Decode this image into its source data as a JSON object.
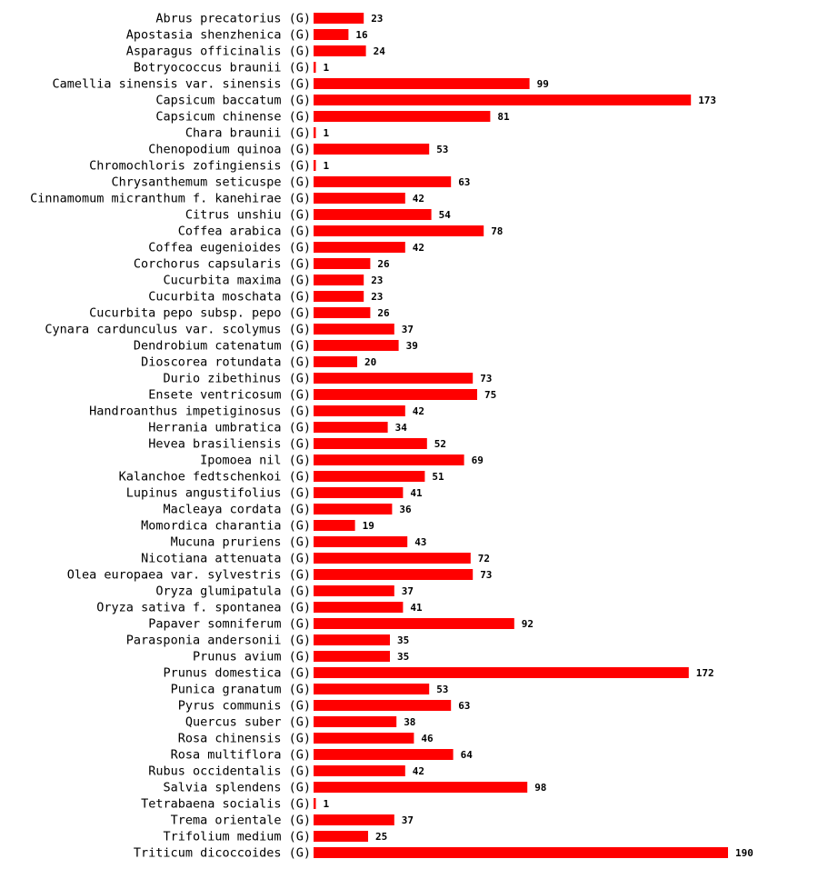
{
  "chart_data": {
    "type": "bar",
    "orientation": "horizontal",
    "title": "",
    "xlabel": "",
    "ylabel": "",
    "xlim": [
      0,
      190
    ],
    "grid": false,
    "bar_color": "#ff0000",
    "categories": [
      "Abrus precatorius (G)",
      "Apostasia shenzhenica (G)",
      "Asparagus officinalis (G)",
      "Botryococcus braunii (G)",
      "Camellia sinensis var. sinensis (G)",
      "Capsicum baccatum (G)",
      "Capsicum chinense (G)",
      "Chara braunii (G)",
      "Chenopodium quinoa (G)",
      "Chromochloris zofingiensis (G)",
      "Chrysanthemum seticuspe (G)",
      "Cinnamomum micranthum f. kanehirae (G)",
      "Citrus unshiu (G)",
      "Coffea arabica (G)",
      "Coffea eugenioides (G)",
      "Corchorus capsularis (G)",
      "Cucurbita maxima (G)",
      "Cucurbita moschata (G)",
      "Cucurbita pepo subsp. pepo (G)",
      "Cynara cardunculus var. scolymus (G)",
      "Dendrobium catenatum (G)",
      "Dioscorea rotundata (G)",
      "Durio zibethinus (G)",
      "Ensete ventricosum (G)",
      "Handroanthus impetiginosus (G)",
      "Herrania umbratica (G)",
      "Hevea brasiliensis (G)",
      "Ipomoea nil (G)",
      "Kalanchoe fedtschenkoi (G)",
      "Lupinus angustifolius (G)",
      "Macleaya cordata (G)",
      "Momordica charantia (G)",
      "Mucuna pruriens (G)",
      "Nicotiana attenuata (G)",
      "Olea europaea var. sylvestris (G)",
      "Oryza glumipatula (G)",
      "Oryza sativa f. spontanea (G)",
      "Papaver somniferum (G)",
      "Parasponia andersonii (G)",
      "Prunus avium (G)",
      "Prunus domestica (G)",
      "Punica granatum (G)",
      "Pyrus communis (G)",
      "Quercus suber (G)",
      "Rosa chinensis (G)",
      "Rosa multiflora (G)",
      "Rubus occidentalis (G)",
      "Salvia splendens (G)",
      "Tetrabaena socialis (G)",
      "Trema orientale (G)",
      "Trifolium medium (G)",
      "Triticum dicoccoides (G)"
    ],
    "values": [
      23,
      16,
      24,
      1,
      99,
      173,
      81,
      1,
      53,
      1,
      63,
      42,
      54,
      78,
      42,
      26,
      23,
      23,
      26,
      37,
      39,
      20,
      73,
      75,
      42,
      34,
      52,
      69,
      51,
      41,
      36,
      19,
      43,
      72,
      73,
      37,
      41,
      92,
      35,
      35,
      172,
      53,
      63,
      38,
      46,
      64,
      42,
      98,
      1,
      37,
      25,
      190
    ]
  }
}
